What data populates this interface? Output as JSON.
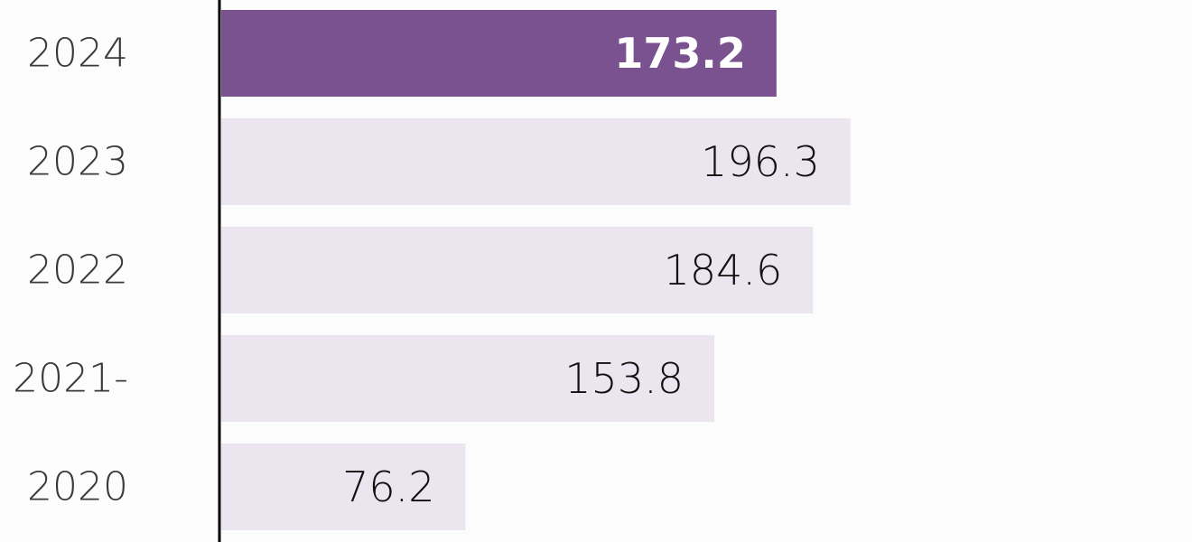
{
  "chart_data": {
    "type": "bar",
    "orientation": "horizontal",
    "categories": [
      "2024",
      "2023",
      "2022",
      "2021-",
      "2020"
    ],
    "values": [
      173.2,
      196.3,
      184.6,
      153.8,
      76.2
    ],
    "colors": [
      "#7a5290",
      "#ebe5f0",
      "#ebe5f0",
      "#ebe5f0",
      "#ebe5f0"
    ]
  }
}
